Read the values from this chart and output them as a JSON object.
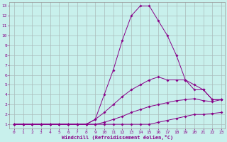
{
  "xlabel": "Windchill (Refroidissement éolien,°C)",
  "background_color": "#c8f0ec",
  "grid_color": "#aabbbb",
  "line_color": "#880088",
  "xlim_min": -0.5,
  "xlim_max": 23.4,
  "ylim_min": 0.6,
  "ylim_max": 13.4,
  "xticks": [
    0,
    1,
    2,
    3,
    4,
    5,
    6,
    7,
    8,
    9,
    10,
    11,
    12,
    13,
    14,
    15,
    16,
    17,
    18,
    19,
    20,
    21,
    22,
    23
  ],
  "yticks": [
    1,
    2,
    3,
    4,
    5,
    6,
    7,
    8,
    9,
    10,
    11,
    12,
    13
  ],
  "lines": [
    {
      "x": [
        0,
        1,
        2,
        3,
        4,
        5,
        6,
        7,
        8,
        9,
        10,
        11,
        12,
        13,
        14,
        15,
        16,
        17,
        18,
        19,
        20,
        21,
        22,
        23
      ],
      "y": [
        1,
        1,
        1,
        1,
        1,
        1,
        1,
        1,
        1,
        1,
        1,
        1,
        1,
        1,
        1,
        1,
        1.2,
        1.4,
        1.6,
        1.8,
        2.0,
        2.0,
        2.1,
        2.2
      ]
    },
    {
      "x": [
        0,
        1,
        2,
        3,
        4,
        5,
        6,
        7,
        8,
        9,
        10,
        11,
        12,
        13,
        14,
        15,
        16,
        17,
        18,
        19,
        20,
        21,
        22,
        23
      ],
      "y": [
        1,
        1,
        1,
        1,
        1,
        1,
        1,
        1,
        1,
        1,
        1.2,
        1.5,
        1.8,
        2.2,
        2.5,
        2.8,
        3.0,
        3.2,
        3.4,
        3.5,
        3.6,
        3.4,
        3.3,
        3.5
      ]
    },
    {
      "x": [
        0,
        1,
        2,
        3,
        4,
        5,
        6,
        7,
        8,
        9,
        10,
        11,
        12,
        13,
        14,
        15,
        16,
        17,
        18,
        19,
        20,
        21,
        22,
        23
      ],
      "y": [
        1,
        1,
        1,
        1,
        1,
        1,
        1,
        1,
        1,
        1.5,
        2.2,
        3.0,
        3.8,
        4.5,
        5.0,
        5.5,
        5.8,
        5.5,
        5.5,
        5.5,
        5.0,
        4.5,
        3.5,
        3.5
      ]
    },
    {
      "x": [
        0,
        1,
        2,
        3,
        4,
        5,
        6,
        7,
        8,
        9,
        10,
        11,
        12,
        13,
        14,
        15,
        16,
        17,
        18,
        19,
        20,
        21,
        22,
        23
      ],
      "y": [
        1,
        1,
        1,
        1,
        1,
        1,
        1,
        1,
        1,
        1.5,
        4.0,
        6.5,
        9.5,
        12.0,
        13.0,
        13.0,
        11.5,
        10.0,
        8.0,
        5.5,
        4.5,
        4.5,
        3.5,
        3.5
      ]
    }
  ]
}
